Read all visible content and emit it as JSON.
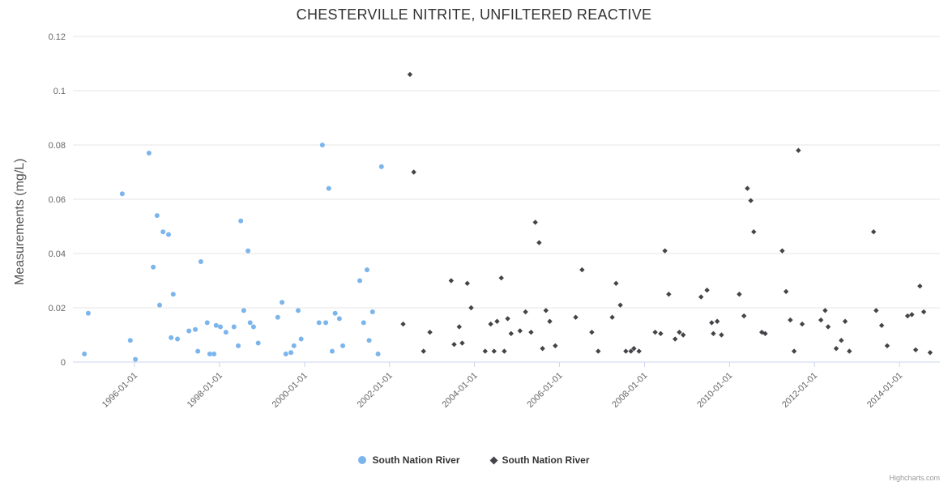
{
  "credits_label": "Highcharts.com",
  "chart_data": {
    "type": "scatter",
    "title": "CHESTERVILLE NITRITE, UNFILTERED REACTIVE",
    "xlabel": "",
    "ylabel": "Measurements (mg/L)",
    "ylim": [
      0,
      0.12
    ],
    "yticks": [
      0,
      0.02,
      0.04,
      0.06,
      0.08,
      0.1,
      0.12
    ],
    "ytick_labels": [
      "0",
      "0.02",
      "0.04",
      "0.06",
      "0.08",
      "0.1",
      "0.12"
    ],
    "xlim": [
      1994.55,
      2014.95
    ],
    "xticks": [
      1996,
      1998,
      2000,
      2002,
      2004,
      2006,
      2008,
      2010,
      2012,
      2014
    ],
    "xtick_labels": [
      "1996-01-01",
      "1998-01-01",
      "2000-01-01",
      "2002-01-01",
      "2004-01-01",
      "2006-01-01",
      "2008-01-01",
      "2010-01-01",
      "2012-01-01",
      "2014-01-01"
    ],
    "grid": true,
    "legend_position": "bottom",
    "series": [
      {
        "name": "South Nation River",
        "marker": "circle",
        "color": "#7cb5ec",
        "points": [
          [
            1994.82,
            0.003
          ],
          [
            1994.91,
            0.018
          ],
          [
            1995.71,
            0.062
          ],
          [
            1995.9,
            0.008
          ],
          [
            1996.02,
            0.001
          ],
          [
            1996.34,
            0.077
          ],
          [
            1996.44,
            0.035
          ],
          [
            1996.53,
            0.054
          ],
          [
            1996.59,
            0.021
          ],
          [
            1996.67,
            0.048
          ],
          [
            1996.8,
            0.047
          ],
          [
            1996.86,
            0.009
          ],
          [
            1996.91,
            0.025
          ],
          [
            1997.01,
            0.0085
          ],
          [
            1997.28,
            0.0115
          ],
          [
            1997.43,
            0.012
          ],
          [
            1997.49,
            0.004
          ],
          [
            1997.56,
            0.037
          ],
          [
            1997.71,
            0.0145
          ],
          [
            1997.77,
            0.003
          ],
          [
            1997.87,
            0.003
          ],
          [
            1997.92,
            0.0135
          ],
          [
            1998.02,
            0.013
          ],
          [
            1998.15,
            0.011
          ],
          [
            1998.34,
            0.013
          ],
          [
            1998.44,
            0.006
          ],
          [
            1998.5,
            0.052
          ],
          [
            1998.57,
            0.019
          ],
          [
            1998.67,
            0.041
          ],
          [
            1998.72,
            0.0145
          ],
          [
            1998.8,
            0.013
          ],
          [
            1998.91,
            0.007
          ],
          [
            1999.37,
            0.0165
          ],
          [
            1999.47,
            0.022
          ],
          [
            1999.56,
            0.003
          ],
          [
            1999.68,
            0.0035
          ],
          [
            1999.75,
            0.006
          ],
          [
            1999.85,
            0.019
          ],
          [
            1999.92,
            0.0085
          ],
          [
            2000.34,
            0.0145
          ],
          [
            2000.42,
            0.08
          ],
          [
            2000.5,
            0.0145
          ],
          [
            2000.57,
            0.064
          ],
          [
            2000.65,
            0.004
          ],
          [
            2000.72,
            0.018
          ],
          [
            2000.82,
            0.016
          ],
          [
            2000.9,
            0.006
          ],
          [
            2001.3,
            0.03
          ],
          [
            2001.39,
            0.0145
          ],
          [
            2001.47,
            0.034
          ],
          [
            2001.52,
            0.008
          ],
          [
            2001.6,
            0.0185
          ],
          [
            2001.73,
            0.003
          ],
          [
            2001.81,
            0.072
          ]
        ]
      },
      {
        "name": "South Nation River",
        "marker": "diamond",
        "color": "#434348",
        "points": [
          [
            2002.32,
            0.014
          ],
          [
            2002.48,
            0.106
          ],
          [
            2002.57,
            0.07
          ],
          [
            2002.8,
            0.004
          ],
          [
            2002.95,
            0.011
          ],
          [
            2003.45,
            0.03
          ],
          [
            2003.52,
            0.0065
          ],
          [
            2003.64,
            0.013
          ],
          [
            2003.71,
            0.007
          ],
          [
            2003.83,
            0.029
          ],
          [
            2003.92,
            0.02
          ],
          [
            2004.25,
            0.004
          ],
          [
            2004.38,
            0.014
          ],
          [
            2004.46,
            0.004
          ],
          [
            2004.53,
            0.015
          ],
          [
            2004.63,
            0.031
          ],
          [
            2004.7,
            0.004
          ],
          [
            2004.78,
            0.016
          ],
          [
            2004.86,
            0.0105
          ],
          [
            2005.07,
            0.0115
          ],
          [
            2005.2,
            0.0185
          ],
          [
            2005.33,
            0.011
          ],
          [
            2005.43,
            0.0515
          ],
          [
            2005.52,
            0.044
          ],
          [
            2005.6,
            0.005
          ],
          [
            2005.68,
            0.019
          ],
          [
            2005.77,
            0.015
          ],
          [
            2005.9,
            0.006
          ],
          [
            2006.38,
            0.0165
          ],
          [
            2006.53,
            0.034
          ],
          [
            2006.76,
            0.011
          ],
          [
            2006.91,
            0.004
          ],
          [
            2007.24,
            0.0165
          ],
          [
            2007.33,
            0.029
          ],
          [
            2007.43,
            0.021
          ],
          [
            2007.56,
            0.004
          ],
          [
            2007.68,
            0.004
          ],
          [
            2007.75,
            0.005
          ],
          [
            2007.87,
            0.004
          ],
          [
            2008.25,
            0.011
          ],
          [
            2008.38,
            0.0105
          ],
          [
            2008.48,
            0.041
          ],
          [
            2008.57,
            0.025
          ],
          [
            2008.72,
            0.0085
          ],
          [
            2008.82,
            0.011
          ],
          [
            2008.91,
            0.01
          ],
          [
            2009.33,
            0.024
          ],
          [
            2009.47,
            0.0265
          ],
          [
            2009.58,
            0.0145
          ],
          [
            2009.62,
            0.0105
          ],
          [
            2009.71,
            0.015
          ],
          [
            2009.81,
            0.01
          ],
          [
            2010.23,
            0.025
          ],
          [
            2010.34,
            0.017
          ],
          [
            2010.42,
            0.064
          ],
          [
            2010.5,
            0.0595
          ],
          [
            2010.57,
            0.048
          ],
          [
            2010.76,
            0.011
          ],
          [
            2010.84,
            0.0105
          ],
          [
            2011.24,
            0.041
          ],
          [
            2011.33,
            0.026
          ],
          [
            2011.43,
            0.0155
          ],
          [
            2011.52,
            0.004
          ],
          [
            2011.62,
            0.078
          ],
          [
            2011.71,
            0.014
          ],
          [
            2012.15,
            0.0155
          ],
          [
            2012.25,
            0.019
          ],
          [
            2012.32,
            0.013
          ],
          [
            2012.51,
            0.005
          ],
          [
            2012.63,
            0.008
          ],
          [
            2012.72,
            0.015
          ],
          [
            2012.82,
            0.004
          ],
          [
            2013.39,
            0.048
          ],
          [
            2013.45,
            0.019
          ],
          [
            2013.58,
            0.0135
          ],
          [
            2013.71,
            0.006
          ],
          [
            2014.19,
            0.017
          ],
          [
            2014.29,
            0.0175
          ],
          [
            2014.38,
            0.0045
          ],
          [
            2014.48,
            0.028
          ],
          [
            2014.57,
            0.0185
          ],
          [
            2014.72,
            0.0035
          ]
        ]
      }
    ]
  }
}
